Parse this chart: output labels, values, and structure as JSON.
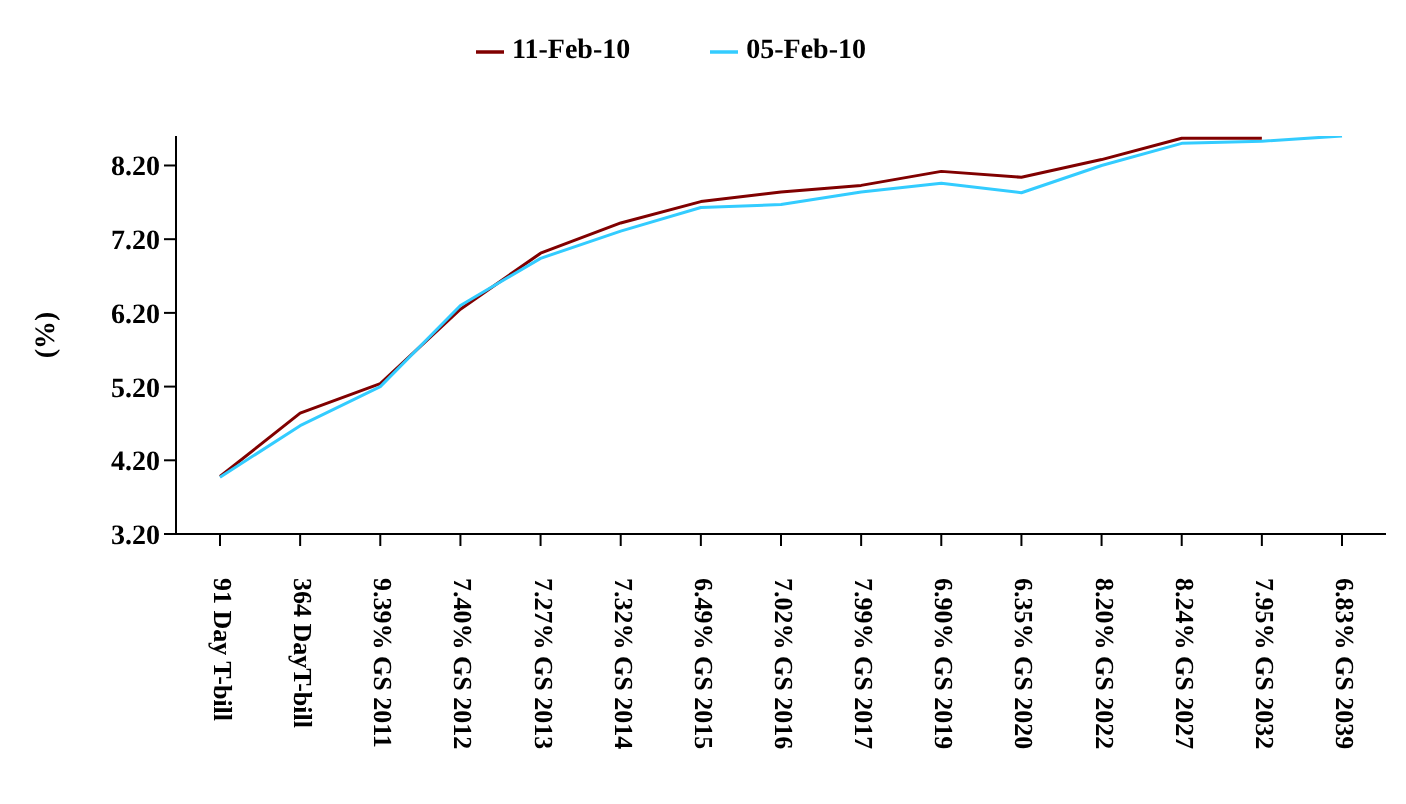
{
  "chart_data": {
    "type": "line",
    "ylabel": "(%)",
    "categories": [
      "91 Day T-bill",
      "364 DayT-bill",
      "9.39% GS 2011",
      "7.40% GS 2012",
      "7.27% GS 2013",
      "7.32% GS 2014",
      "6.49% GS 2015",
      "7.02% GS 2016",
      "7.99% GS 2017",
      "6.90% GS 2019",
      "6.35% GS 2020",
      "8.20% GS 2022",
      "8.24% GS 2027",
      "7.95% GS 2032",
      "6.83% GS 2039"
    ],
    "series": [
      {
        "name": "11-Feb-10",
        "color": "#800000",
        "values": [
          3.98,
          4.84,
          5.24,
          6.25,
          7.01,
          7.42,
          7.71,
          7.84,
          7.93,
          8.12,
          8.04,
          8.28,
          8.57,
          8.57,
          null
        ]
      },
      {
        "name": "05-Feb-10",
        "color": "#33ccff",
        "values": [
          3.97,
          4.67,
          5.2,
          6.3,
          6.94,
          7.31,
          7.63,
          7.67,
          7.84,
          7.96,
          7.83,
          8.2,
          8.5,
          8.53,
          8.6
        ]
      }
    ],
    "ylim": [
      3.2,
      8.6
    ],
    "yticks": [
      {
        "value": 3.2,
        "label": "3.20"
      },
      {
        "value": 4.2,
        "label": "4.20"
      },
      {
        "value": 5.2,
        "label": "5.20"
      },
      {
        "value": 6.2,
        "label": "6.20"
      },
      {
        "value": 7.2,
        "label": "7.20"
      },
      {
        "value": 8.2,
        "label": "8.20"
      }
    ],
    "grid": false,
    "legend": "top",
    "marker": "none",
    "line_style": "solid"
  }
}
